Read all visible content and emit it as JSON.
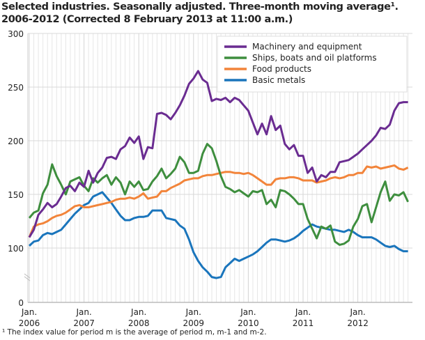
{
  "title_line1": "Selected industries. Seasonally adjusted. Three-month moving average¹.",
  "title_line2": "2006-2012 (Corrected 8 February 2013 at 11:00 a.m.)",
  "footnote": "¹  The index value for period m is the average of period m, m-1 and m-2.",
  "chart_data": {
    "type": "line",
    "x_start": "2006-01",
    "x_frequency": "monthly",
    "x_ticks": [
      {
        "month": 0,
        "l1": "Jan.",
        "l2": "2006"
      },
      {
        "month": 12,
        "l1": "Jan.",
        "l2": "2007"
      },
      {
        "month": 24,
        "l1": "Jan.",
        "l2": "2008"
      },
      {
        "month": 36,
        "l1": "Jan.",
        "l2": "2009"
      },
      {
        "month": 48,
        "l1": "Jan.",
        "l2": "2010"
      },
      {
        "month": 60,
        "l1": "Jan.",
        "l2": "2011"
      },
      {
        "month": 72,
        "l1": "Jan.",
        "l2": "2012"
      }
    ],
    "y_ticks": [
      "300",
      "250",
      "200",
      "150",
      "100",
      "0"
    ],
    "ylim": [
      0,
      300
    ],
    "y_axis_break": true,
    "grid": true,
    "legend": "top-right",
    "series": [
      {
        "name": "Machinery and equipment",
        "color": "#6a2c91",
        "values": [
          110,
          117,
          131,
          136,
          142,
          138,
          141,
          148,
          156,
          158,
          153,
          161,
          157,
          172,
          161,
          170,
          175,
          184,
          185,
          183,
          192,
          195,
          203,
          198,
          204,
          183,
          194,
          193,
          225,
          226,
          224,
          220,
          226,
          233,
          242,
          253,
          258,
          265,
          257,
          254,
          237,
          239,
          238,
          240,
          236,
          240,
          238,
          233,
          228,
          217,
          206,
          216,
          206,
          223,
          210,
          214,
          197,
          192,
          196,
          186,
          186,
          170,
          175,
          162,
          168,
          166,
          171,
          171,
          180,
          181,
          182,
          185,
          188,
          192,
          196,
          200,
          205,
          212,
          211,
          215,
          228,
          235,
          236,
          236
        ]
      },
      {
        "name": "Ships, boats and oil platforms",
        "color": "#3e8e3e",
        "values": [
          128,
          133,
          135,
          151,
          159,
          178,
          167,
          159,
          150,
          162,
          164,
          166,
          158,
          153,
          165,
          161,
          165,
          168,
          159,
          166,
          161,
          150,
          162,
          157,
          162,
          154,
          155,
          162,
          167,
          174,
          165,
          169,
          174,
          185,
          180,
          170,
          170,
          172,
          188,
          197,
          193,
          181,
          167,
          157,
          155,
          152,
          154,
          151,
          148,
          153,
          152,
          154,
          141,
          145,
          138,
          154,
          153,
          150,
          146,
          141,
          141,
          127,
          118,
          109,
          120,
          118,
          121,
          106,
          103,
          104,
          107,
          120,
          127,
          139,
          141,
          124,
          138,
          152,
          162,
          144,
          150,
          149,
          152,
          143
        ]
      },
      {
        "name": "Food products",
        "color": "#f2843a",
        "values": [
          110,
          120,
          122,
          123,
          125,
          128,
          130,
          131,
          133,
          136,
          139,
          140,
          138,
          138,
          139,
          140,
          141,
          142,
          143,
          145,
          146,
          146,
          147,
          146,
          148,
          151,
          146,
          147,
          148,
          153,
          153,
          156,
          158,
          160,
          163,
          164,
          165,
          165,
          167,
          168,
          168,
          169,
          170,
          171,
          171,
          170,
          170,
          169,
          170,
          168,
          165,
          162,
          159,
          159,
          164,
          165,
          165,
          166,
          166,
          165,
          163,
          163,
          163,
          161,
          162,
          163,
          165,
          166,
          165,
          166,
          168,
          168,
          170,
          170,
          176,
          175,
          176,
          174,
          175,
          176,
          177,
          174,
          173,
          175
        ]
      },
      {
        "name": "Basic metals",
        "color": "#1a75bc",
        "values": [
          102,
          106,
          107,
          112,
          114,
          113,
          115,
          117,
          122,
          127,
          132,
          136,
          140,
          142,
          148,
          150,
          152,
          147,
          142,
          136,
          130,
          126,
          126,
          128,
          129,
          129,
          130,
          135,
          135,
          135,
          128,
          127,
          126,
          121,
          118,
          108,
          96,
          88,
          82,
          78,
          73,
          72,
          73,
          82,
          86,
          90,
          88,
          90,
          92,
          94,
          97,
          101,
          105,
          108,
          108,
          107,
          106,
          107,
          109,
          112,
          116,
          119,
          122,
          120,
          119,
          118,
          117,
          117,
          116,
          115,
          117,
          115,
          112,
          110,
          110,
          110,
          108,
          105,
          102,
          101,
          102,
          99,
          97,
          97
        ]
      }
    ]
  }
}
